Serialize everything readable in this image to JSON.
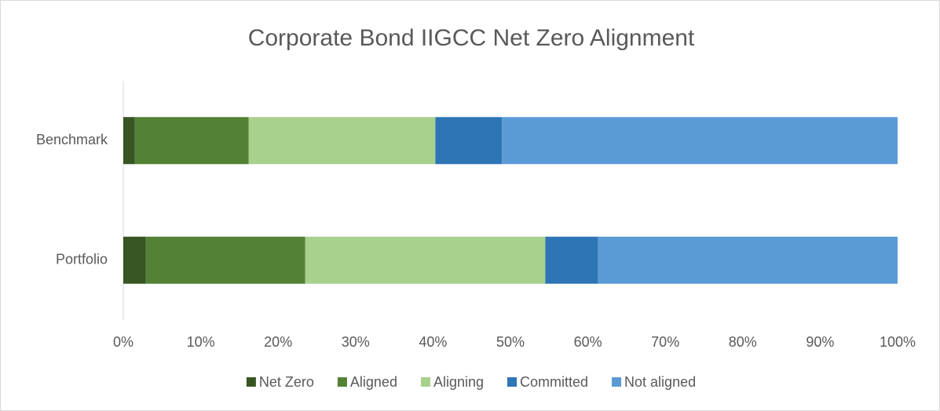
{
  "chart_data": {
    "type": "stacked-bar-horizontal",
    "title": "Corporate Bond IIGCC Net Zero Alignment",
    "categories": [
      "Benchmark",
      "Portfolio"
    ],
    "series": [
      {
        "name": "Net Zero",
        "color": "#375623",
        "values": [
          1.5,
          2.9
        ]
      },
      {
        "name": "Aligned",
        "color": "#538135",
        "values": [
          14.7,
          20.6
        ]
      },
      {
        "name": "Aligning",
        "color": "#a9d18e",
        "values": [
          24.1,
          31.0
        ]
      },
      {
        "name": "Committed",
        "color": "#2e75b6",
        "values": [
          8.6,
          6.8
        ]
      },
      {
        "name": "Not aligned",
        "color": "#5b9bd5",
        "values": [
          51.1,
          38.7
        ]
      }
    ],
    "xlim": [
      0,
      100
    ],
    "xticks": [
      {
        "value": 0,
        "label": "0%"
      },
      {
        "value": 10,
        "label": "10%"
      },
      {
        "value": 20,
        "label": "20%"
      },
      {
        "value": 30,
        "label": "30%"
      },
      {
        "value": 40,
        "label": "40%"
      },
      {
        "value": 50,
        "label": "50%"
      },
      {
        "value": 60,
        "label": "60%"
      },
      {
        "value": 70,
        "label": "70%"
      },
      {
        "value": 80,
        "label": "80%"
      },
      {
        "value": 90,
        "label": "90%"
      },
      {
        "value": 100,
        "label": "100%"
      }
    ],
    "legend": "bottom"
  }
}
